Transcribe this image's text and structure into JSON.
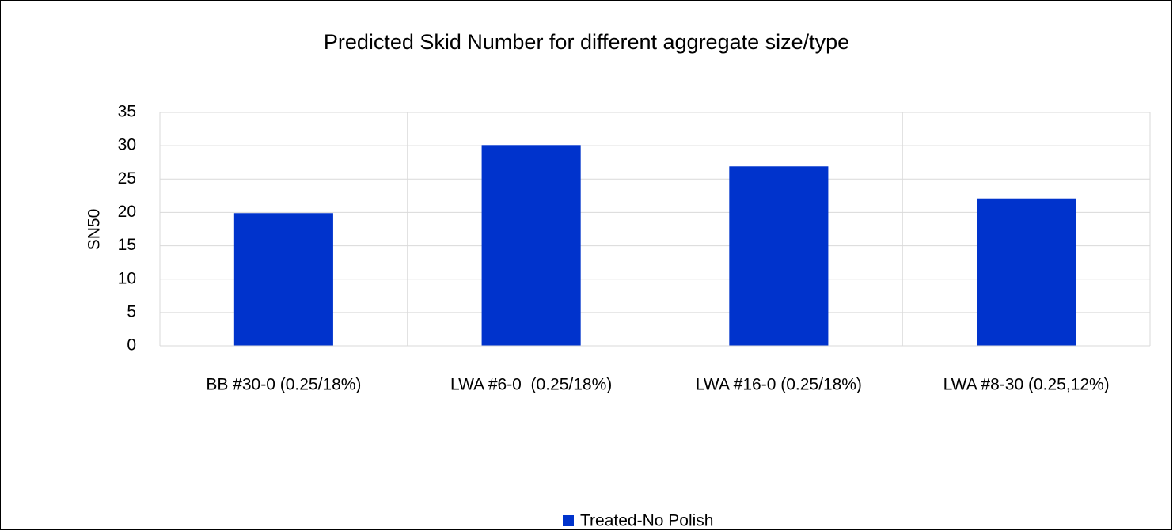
{
  "chart_data": {
    "type": "bar",
    "title": "Predicted Skid Number for different aggregate size/type",
    "y_label": "SN50",
    "categories": [
      "BB #30-0 (0.25/18%)",
      "LWA #6-0  (0.25/18%)",
      "LWA #16-0 (0.25/18%)",
      "LWA #8-30 (0.25,12%)"
    ],
    "series": [
      {
        "name": "Treated-No Polish",
        "color": "#0033cc",
        "values": [
          19.9,
          30.1,
          26.9,
          22.1
        ]
      }
    ],
    "ylim": [
      0,
      35
    ],
    "yticks": [
      0,
      5,
      10,
      15,
      20,
      25,
      30,
      35
    ],
    "grid": true,
    "legend": "bottom"
  }
}
